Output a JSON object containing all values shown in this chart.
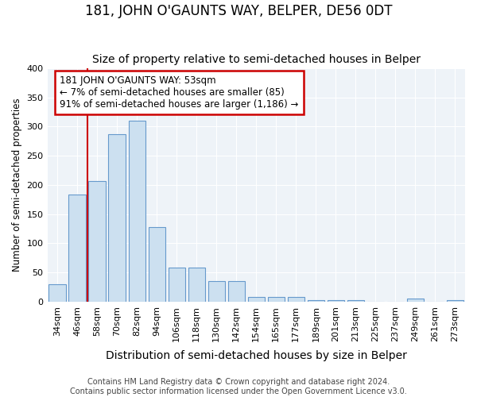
{
  "title": "181, JOHN O'GAUNTS WAY, BELPER, DE56 0DT",
  "subtitle": "Size of property relative to semi-detached houses in Belper",
  "xlabel": "Distribution of semi-detached houses by size in Belper",
  "ylabel": "Number of semi-detached properties",
  "footnote": "Contains HM Land Registry data © Crown copyright and database right 2024.\nContains public sector information licensed under the Open Government Licence v3.0.",
  "categories": [
    "34sqm",
    "46sqm",
    "58sqm",
    "70sqm",
    "82sqm",
    "94sqm",
    "106sqm",
    "118sqm",
    "130sqm",
    "142sqm",
    "154sqm",
    "165sqm",
    "177sqm",
    "189sqm",
    "201sqm",
    "213sqm",
    "225sqm",
    "237sqm",
    "249sqm",
    "261sqm",
    "273sqm"
  ],
  "bar_heights": [
    30,
    183,
    207,
    287,
    310,
    128,
    59,
    59,
    35,
    35,
    8,
    8,
    8,
    2,
    2,
    2,
    0,
    0,
    5,
    0,
    3
  ],
  "bar_color": "#cce0f0",
  "bar_edge_color": "#6699cc",
  "property_line_x": 1.5,
  "annotation_text": "181 JOHN O'GAUNTS WAY: 53sqm\n← 7% of semi-detached houses are smaller (85)\n91% of semi-detached houses are larger (1,186) →",
  "annotation_box_color": "#ffffff",
  "annotation_box_edge": "#cc0000",
  "vline_color": "#cc0000",
  "ylim": [
    0,
    400
  ],
  "bg_color": "#ffffff",
  "plot_bg_color": "#eef3f8",
  "grid_color": "#ffffff",
  "title_fontsize": 12,
  "subtitle_fontsize": 10,
  "xlabel_fontsize": 10,
  "ylabel_fontsize": 8.5,
  "tick_fontsize": 8,
  "annotation_fontsize": 8.5,
  "footnote_fontsize": 7
}
